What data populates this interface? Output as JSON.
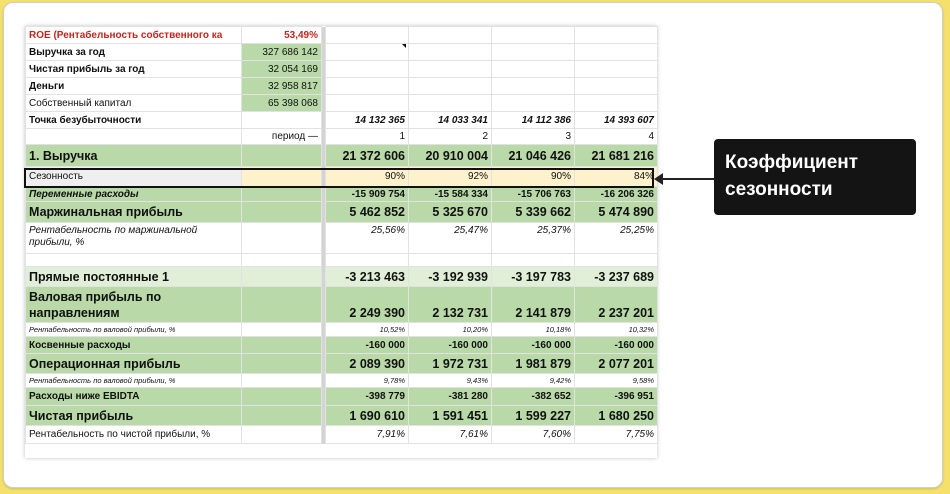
{
  "callout": {
    "line1": "Коэффициент",
    "line2": "сезонности"
  },
  "summary": [
    {
      "label": "ROE (Рентабельность собственного ка",
      "value": "53,49%"
    },
    {
      "label": "Выручка за год",
      "value": "327 686 142"
    },
    {
      "label": "Чистая прибыль за год",
      "value": "32 054 169"
    },
    {
      "label": "Деньги",
      "value": "32 958 817"
    },
    {
      "label": "Собственный капитал",
      "value": "65 398 068"
    }
  ],
  "breakeven": {
    "label": "Точка безубыточности",
    "values": [
      "14 132 365",
      "14 033 341",
      "14 112 386",
      "14 393 607"
    ]
  },
  "period": {
    "label": "период —",
    "values": [
      "1",
      "2",
      "3",
      "4"
    ]
  },
  "rows": [
    {
      "label": "1. Выручка",
      "values": [
        "21 372 606",
        "20 910 004",
        "21 046 426",
        "21 681 216"
      ]
    },
    {
      "label": "Сезонность",
      "values": [
        "90%",
        "92%",
        "90%",
        "84%"
      ]
    },
    {
      "label": "Переменные расходы",
      "values": [
        "-15 909 754",
        "-15 584 334",
        "-15 706 763",
        "-16 206 326"
      ]
    },
    {
      "label": "Маржинальная прибыль",
      "values": [
        "5 462 852",
        "5 325 670",
        "5 339 662",
        "5 474 890"
      ]
    },
    {
      "label_line1": "Рентабельность по маржинальной",
      "label_line2": "прибыли, %",
      "values": [
        "25,56%",
        "25,47%",
        "25,37%",
        "25,25%"
      ]
    },
    {
      "label": "Прямые постоянные 1",
      "values": [
        "-3 213 463",
        "-3 192 939",
        "-3 197 783",
        "-3 237 689"
      ]
    },
    {
      "label_line1": "Валовая прибыль по",
      "label_line2": "направлениям",
      "values": [
        "2 249 390",
        "2 132 731",
        "2 141 879",
        "2 237 201"
      ]
    },
    {
      "label": "Рентабельность по валовой прибыли, %",
      "values": [
        "10,52%",
        "10,20%",
        "10,18%",
        "10,32%"
      ]
    },
    {
      "label": "Косвенные расходы",
      "values": [
        "-160 000",
        "-160 000",
        "-160 000",
        "-160 000"
      ]
    },
    {
      "label": "Операционная  прибыль",
      "values": [
        "2 089 390",
        "1 972 731",
        "1 981 879",
        "2 077 201"
      ]
    },
    {
      "label": "Рентабельность по валовой прибыли, %",
      "values": [
        "9,78%",
        "9,43%",
        "9,42%",
        "9,58%"
      ]
    },
    {
      "label": "Расходы ниже EBIDTA",
      "values": [
        "-398 779",
        "-381 280",
        "-382 652",
        "-396 951"
      ]
    },
    {
      "label": "Чистая прибыль",
      "values": [
        "1 690 610",
        "1 591 451",
        "1 599 227",
        "1 680 250"
      ]
    },
    {
      "label": "Рентабельность по чистой прибыли, %",
      "values": [
        "7,91%",
        "7,61%",
        "7,60%",
        "7,75%"
      ]
    }
  ]
}
